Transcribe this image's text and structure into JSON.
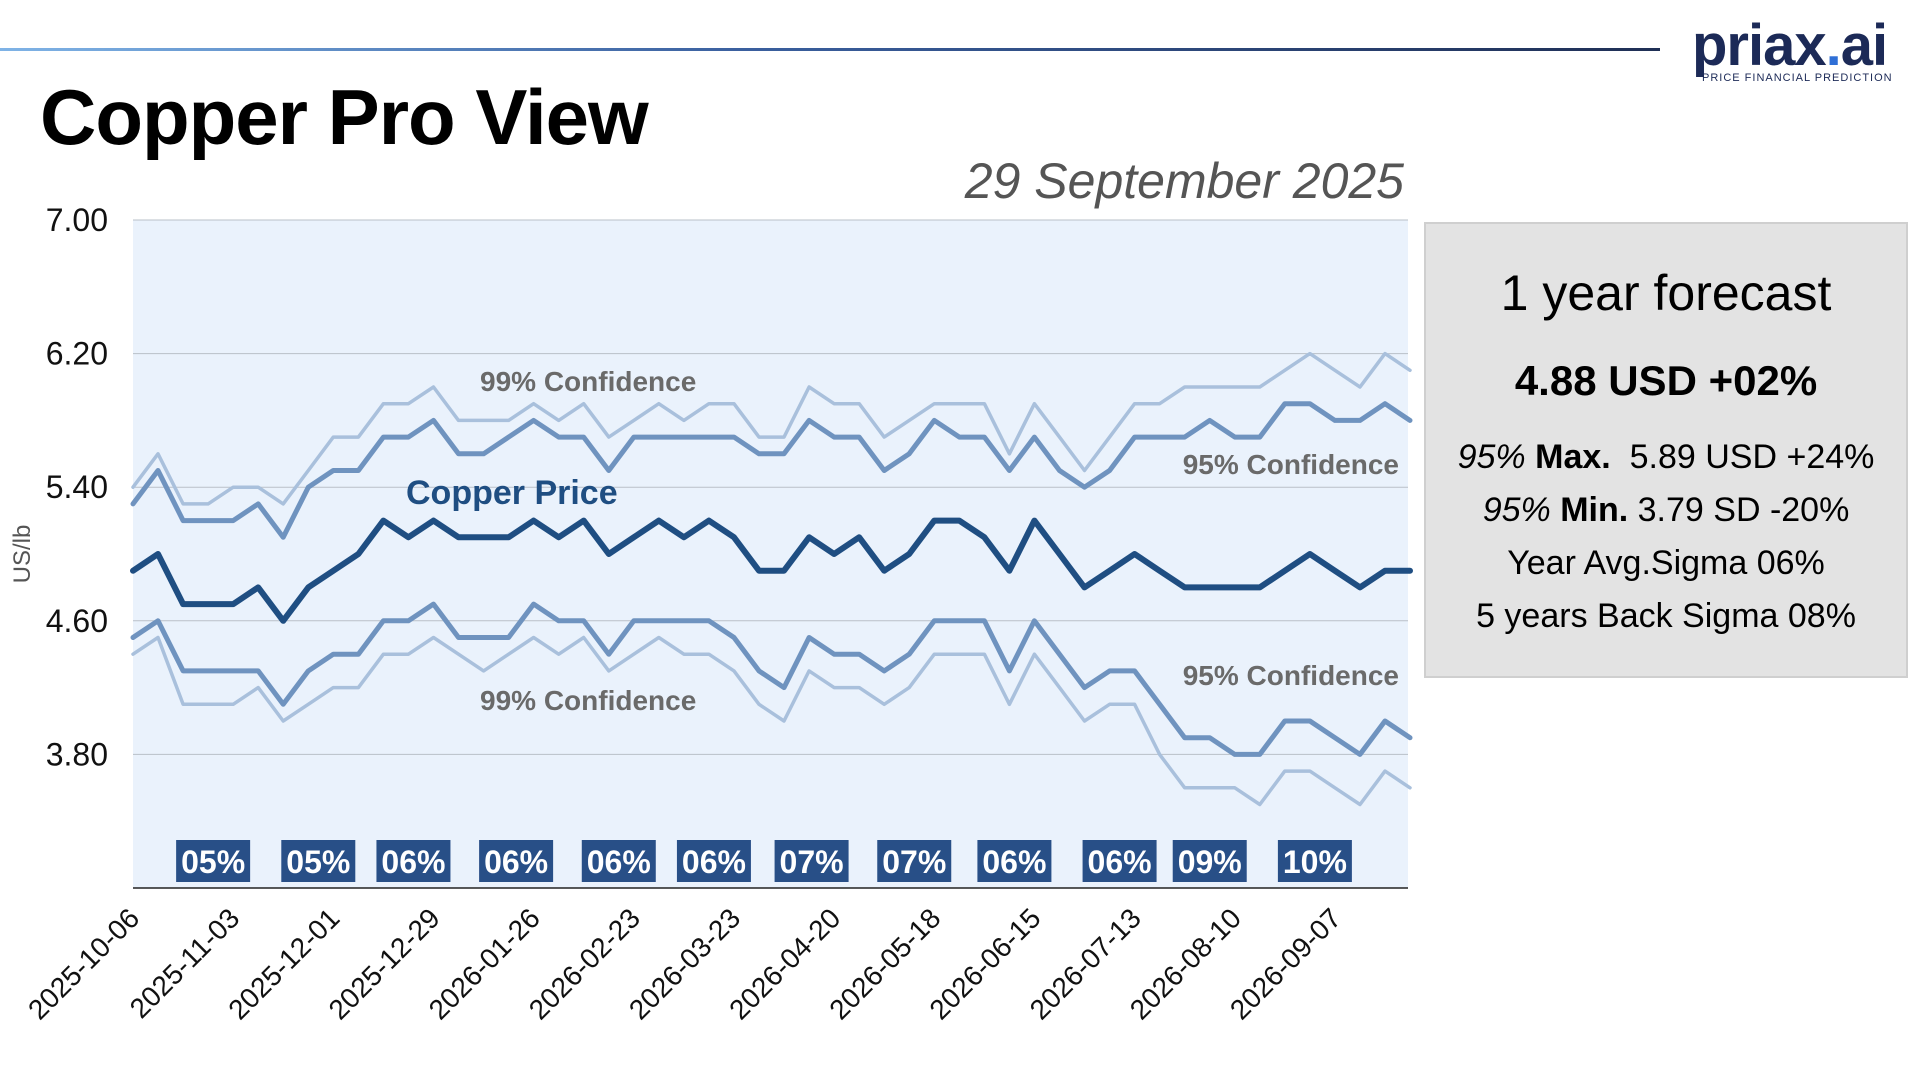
{
  "brand": {
    "logo_text": "priax.ai",
    "tagline": "PRICE FINANCIAL PREDICTION"
  },
  "title": "Copper Pro View",
  "date": "29 September 2025",
  "forecast": {
    "title": "1 year forecast",
    "price": "4.88 USD +02%",
    "max": {
      "prefix": "95%",
      "label": "Max.",
      "value": "5.89 USD +24%"
    },
    "min": {
      "prefix": "95%",
      "label": "Min.",
      "value": "3.79 SD -20%"
    },
    "avg_sigma": "Year Avg.Sigma 06%",
    "back_sigma": "5 years Back Sigma 08%"
  },
  "chart_data": {
    "type": "line",
    "ylabel": "US/lb",
    "ylim": [
      3.0,
      7.0
    ],
    "yticks": [
      "7.00",
      "6.20",
      "5.40",
      "4.60",
      "3.80"
    ],
    "grid": true,
    "x_tick_labels": [
      "2025-10-06",
      "2025-11-03",
      "2025-12-01",
      "2025-12-29",
      "2026-01-26",
      "2026-02-23",
      "2026-03-23",
      "2026-04-20",
      "2026-05-18",
      "2026-06-15",
      "2026-07-13",
      "2026-08-10",
      "2026-09-07"
    ],
    "colors": {
      "price": "#1f4e82",
      "conf95": "#6f93bf",
      "conf99": "#a9c0dc",
      "plot_bg": "#eaf2fc",
      "badge_bg": "#284f87",
      "label_gray": "#6a6a6a"
    },
    "series": [
      {
        "name": "99% Confidence",
        "key": "u99",
        "values": [
          5.4,
          5.6,
          5.3,
          5.3,
          5.4,
          5.4,
          5.3,
          5.5,
          5.7,
          5.7,
          5.9,
          5.9,
          6.0,
          5.8,
          5.8,
          5.8,
          5.9,
          5.8,
          5.9,
          5.7,
          5.8,
          5.9,
          5.8,
          5.9,
          5.9,
          5.7,
          5.7,
          6.0,
          5.9,
          5.9,
          5.7,
          5.8,
          5.9,
          5.9,
          5.9,
          5.6,
          5.9,
          5.7,
          5.5,
          5.7,
          5.9,
          5.9,
          6.0,
          6.0,
          6.0,
          6.0,
          6.1,
          6.2,
          6.1,
          6.0,
          6.2,
          6.1
        ]
      },
      {
        "name": "95% Confidence",
        "key": "u95",
        "values": [
          5.3,
          5.5,
          5.2,
          5.2,
          5.2,
          5.3,
          5.1,
          5.4,
          5.5,
          5.5,
          5.7,
          5.7,
          5.8,
          5.6,
          5.6,
          5.7,
          5.8,
          5.7,
          5.7,
          5.5,
          5.7,
          5.7,
          5.7,
          5.7,
          5.7,
          5.6,
          5.6,
          5.8,
          5.7,
          5.7,
          5.5,
          5.6,
          5.8,
          5.7,
          5.7,
          5.5,
          5.7,
          5.5,
          5.4,
          5.5,
          5.7,
          5.7,
          5.7,
          5.8,
          5.7,
          5.7,
          5.9,
          5.9,
          5.8,
          5.8,
          5.9,
          5.8
        ]
      },
      {
        "name": "Copper Price",
        "key": "price",
        "values": [
          4.9,
          5.0,
          4.7,
          4.7,
          4.7,
          4.8,
          4.6,
          4.8,
          4.9,
          5.0,
          5.2,
          5.1,
          5.2,
          5.1,
          5.1,
          5.1,
          5.2,
          5.1,
          5.2,
          5.0,
          5.1,
          5.2,
          5.1,
          5.2,
          5.1,
          4.9,
          4.9,
          5.1,
          5.0,
          5.1,
          4.9,
          5.0,
          5.2,
          5.2,
          5.1,
          4.9,
          5.2,
          5.0,
          4.8,
          4.9,
          5.0,
          4.9,
          4.8,
          4.8,
          4.8,
          4.8,
          4.9,
          5.0,
          4.9,
          4.8,
          4.9,
          4.9
        ]
      },
      {
        "name": "95% Confidence",
        "key": "l95",
        "values": [
          4.5,
          4.6,
          4.3,
          4.3,
          4.3,
          4.3,
          4.1,
          4.3,
          4.4,
          4.4,
          4.6,
          4.6,
          4.7,
          4.5,
          4.5,
          4.5,
          4.7,
          4.6,
          4.6,
          4.4,
          4.6,
          4.6,
          4.6,
          4.6,
          4.5,
          4.3,
          4.2,
          4.5,
          4.4,
          4.4,
          4.3,
          4.4,
          4.6,
          4.6,
          4.6,
          4.3,
          4.6,
          4.4,
          4.2,
          4.3,
          4.3,
          4.1,
          3.9,
          3.9,
          3.8,
          3.8,
          4.0,
          4.0,
          3.9,
          3.8,
          4.0,
          3.9
        ]
      },
      {
        "name": "99% Confidence",
        "key": "l99",
        "values": [
          4.4,
          4.5,
          4.1,
          4.1,
          4.1,
          4.2,
          4.0,
          4.1,
          4.2,
          4.2,
          4.4,
          4.4,
          4.5,
          4.4,
          4.3,
          4.4,
          4.5,
          4.4,
          4.5,
          4.3,
          4.4,
          4.5,
          4.4,
          4.4,
          4.3,
          4.1,
          4.0,
          4.3,
          4.2,
          4.2,
          4.1,
          4.2,
          4.4,
          4.4,
          4.4,
          4.1,
          4.4,
          4.2,
          4.0,
          4.1,
          4.1,
          3.8,
          3.6,
          3.6,
          3.6,
          3.5,
          3.7,
          3.7,
          3.6,
          3.5,
          3.7,
          3.6
        ]
      }
    ],
    "series_labels": [
      {
        "text": "99% Confidence",
        "series": "u99"
      },
      {
        "text": "95% Confidence",
        "series": "u95"
      },
      {
        "text": "Copper Price",
        "series": "price"
      },
      {
        "text": "95% Confidence",
        "series": "l95"
      },
      {
        "text": "99% Confidence",
        "series": "l99"
      }
    ],
    "sigma_badges": [
      {
        "label": "05%",
        "week": 3.2
      },
      {
        "label": "05%",
        "week": 7.4
      },
      {
        "label": "06%",
        "week": 11.2
      },
      {
        "label": "06%",
        "week": 15.3
      },
      {
        "label": "06%",
        "week": 19.4
      },
      {
        "label": "06%",
        "week": 23.2
      },
      {
        "label": "07%",
        "week": 27.1
      },
      {
        "label": "07%",
        "week": 31.2
      },
      {
        "label": "06%",
        "week": 35.2
      },
      {
        "label": "06%",
        "week": 39.4
      },
      {
        "label": "09%",
        "week": 43.0
      },
      {
        "label": "10%",
        "week": 47.2
      }
    ]
  }
}
